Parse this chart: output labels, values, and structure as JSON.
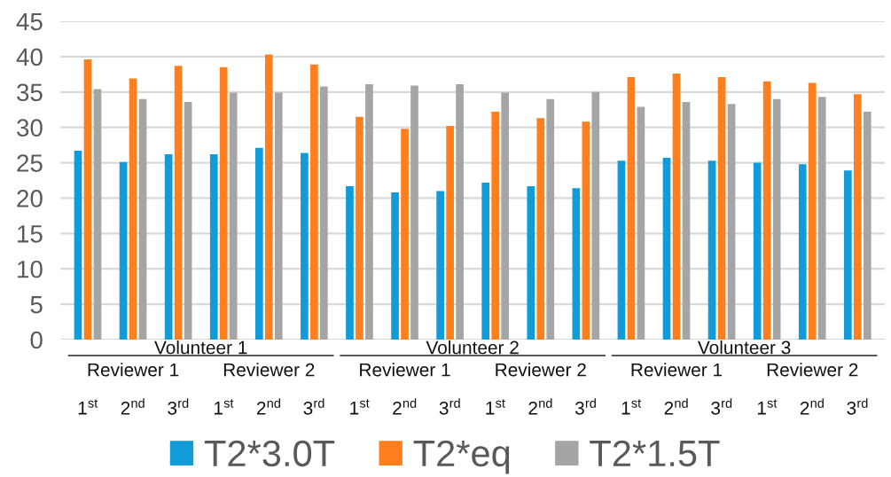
{
  "chart_data": {
    "type": "bar",
    "categories": [
      "1$^{st}$",
      "2$^{nd}$",
      "3$^{rd}$",
      "1$^{st}$",
      "2$^{nd}$",
      "3$^{rd}$",
      "1$^{st}$",
      "2$^{nd}$",
      "3$^{rd}$",
      "1$^{st}$",
      "2$^{nd}$",
      "3$^{rd}$",
      "1$^{st}$",
      "2$^{nd}$",
      "3$^{rd}$",
      "1$^{st}$",
      "2$^{nd}$",
      "3$^{rd}$"
    ],
    "series": [
      {
        "name": "T2*3.0T",
        "color": "#119bd8",
        "values": [
          26.7,
          25.1,
          26.2,
          26.2,
          27.1,
          26.4,
          21.7,
          20.8,
          21.0,
          22.2,
          21.7,
          21.4,
          25.3,
          25.7,
          25.3,
          25.0,
          24.8,
          23.9
        ]
      },
      {
        "name": "T2*eq",
        "color": "#ff7f1f",
        "values": [
          39.6,
          36.9,
          38.7,
          38.5,
          40.3,
          38.9,
          31.5,
          29.8,
          30.2,
          32.2,
          31.3,
          30.8,
          37.1,
          37.6,
          37.1,
          36.5,
          36.3,
          34.7
        ]
      },
      {
        "name": "T2*1.5T",
        "color": "#a5a5a5",
        "values": [
          35.4,
          34.0,
          33.6,
          34.9,
          34.9,
          35.8,
          36.1,
          35.9,
          36.1,
          34.9,
          34.0,
          35.0,
          32.9,
          33.6,
          33.3,
          34.0,
          34.3,
          32.2
        ]
      }
    ],
    "annotations": [
      "Volunteer 1",
      "Reviewer 1",
      "Reviewer 2",
      "Volunteer 2",
      "Reviewer 1",
      "Reviewer 2",
      "Volunteer 3",
      "Reviewer 1",
      "Reviewer 2"
    ],
    "ylim": [
      0,
      45
    ],
    "yticks": [
      0,
      5,
      10,
      15,
      20,
      25,
      30,
      35,
      40,
      45
    ],
    "grid": "y",
    "legend": "bottom"
  }
}
